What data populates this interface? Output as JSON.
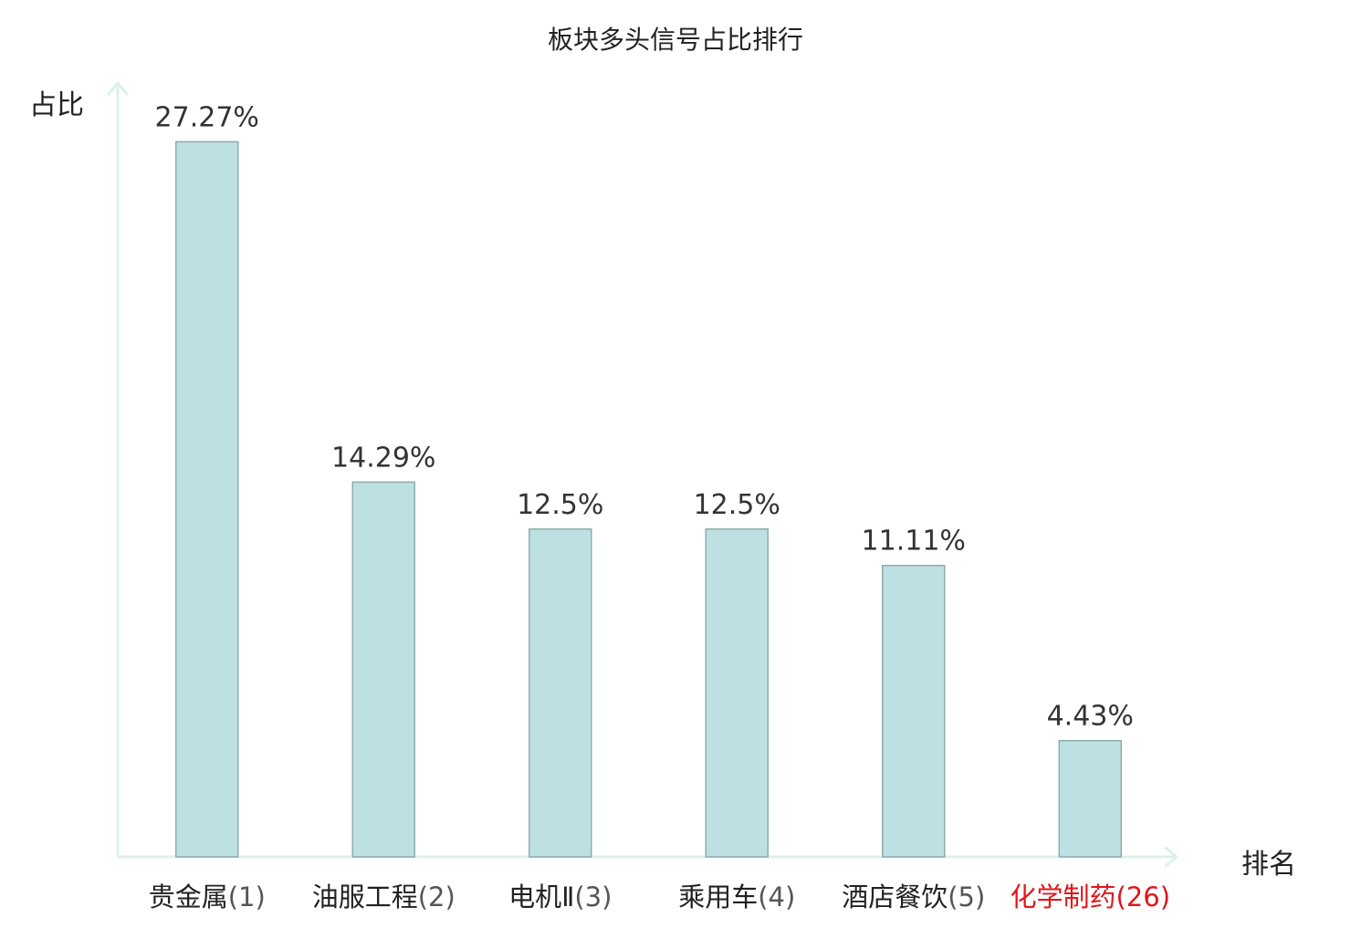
{
  "chart_data": {
    "type": "bar",
    "title": "板块多头信号占比排行",
    "ylabel": "占比",
    "xlabel": "排名",
    "categories": [
      {
        "name": "贵金属",
        "rank": "(1)"
      },
      {
        "name": "油服工程",
        "rank": "(2)"
      },
      {
        "name": "电机Ⅱ",
        "rank": "(3)"
      },
      {
        "name": "乘用车",
        "rank": "(4)"
      },
      {
        "name": "酒店餐饮",
        "rank": "(5)"
      },
      {
        "name": "化学制药",
        "rank": "(26)"
      }
    ],
    "values": [
      27.27,
      14.29,
      12.5,
      12.5,
      11.11,
      4.43
    ],
    "value_labels": [
      "27.27%",
      "14.29%",
      "12.5%",
      "12.5%",
      "11.11%",
      "4.43%"
    ],
    "highlight_index": 5,
    "ylim": [
      0,
      28.5
    ],
    "grid": false,
    "legend": "none",
    "colors": {
      "bar_fill": "#bde1e3",
      "bar_stroke": "#8fabab",
      "axis": "#dcf1ee",
      "text": "#222222",
      "value_label": "#333333",
      "rank_text": "#555555",
      "highlight": "#e0171c"
    }
  }
}
